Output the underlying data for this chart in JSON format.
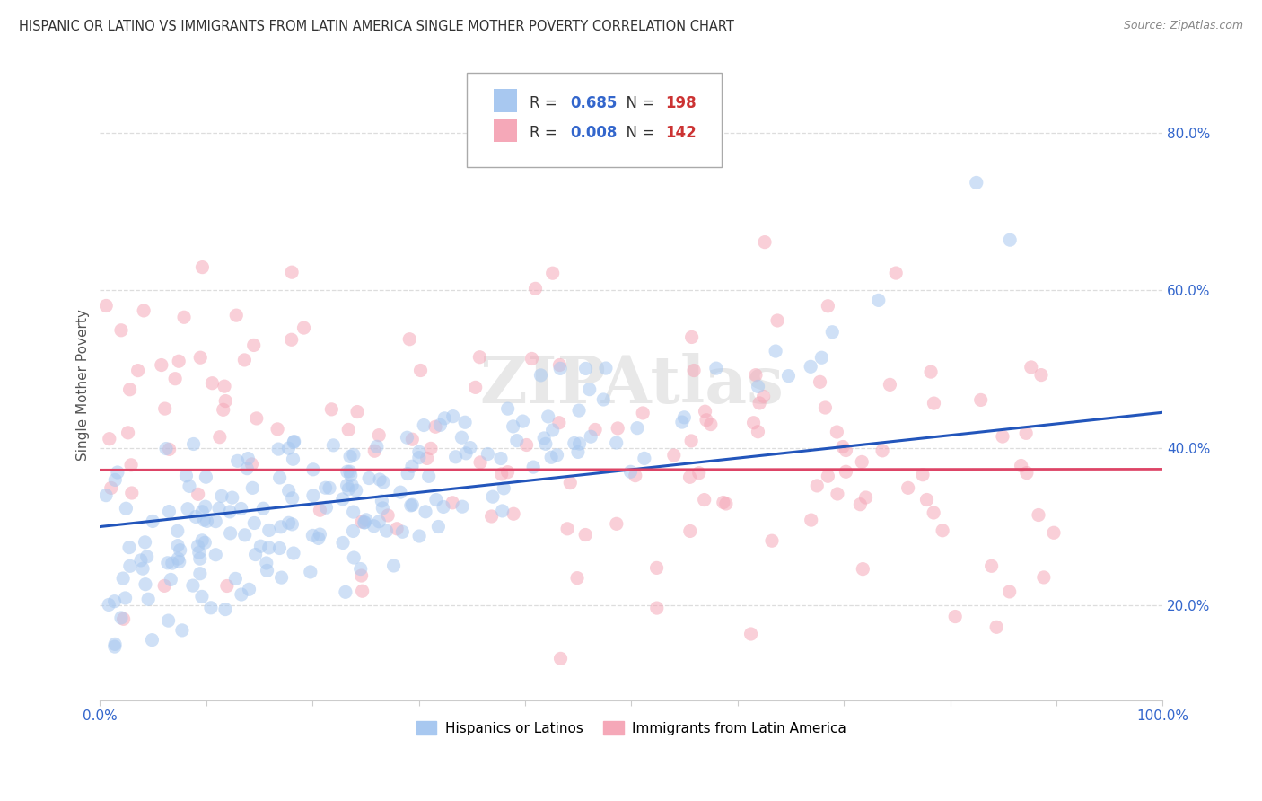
{
  "title": "HISPANIC OR LATINO VS IMMIGRANTS FROM LATIN AMERICA SINGLE MOTHER POVERTY CORRELATION CHART",
  "source": "Source: ZipAtlas.com",
  "ylabel": "Single Mother Poverty",
  "xlim": [
    0.0,
    1.0
  ],
  "ylim": [
    0.08,
    0.88
  ],
  "blue_R": 0.685,
  "blue_N": 198,
  "pink_R": 0.008,
  "pink_N": 142,
  "blue_color": "#A8C8F0",
  "pink_color": "#F5A8B8",
  "blue_line_color": "#2255BB",
  "pink_line_color": "#DD4466",
  "watermark": "ZIPAtlas",
  "grid_color": "#DDDDDD",
  "ytick_values": [
    0.2,
    0.4,
    0.6,
    0.8
  ],
  "ytick_labels": [
    "20.0%",
    "40.0%",
    "60.0%",
    "80.0%"
  ],
  "xtick_values": [
    0.0,
    0.1,
    0.2,
    0.3,
    0.4,
    0.5,
    0.6,
    0.7,
    0.8,
    0.9,
    1.0
  ],
  "blue_intercept": 0.3,
  "blue_slope": 0.145,
  "pink_intercept": 0.372,
  "pink_slope": 0.001,
  "seed": 42,
  "blue_scatter_alpha": 0.55,
  "pink_scatter_alpha": 0.55,
  "scatter_size": 120
}
